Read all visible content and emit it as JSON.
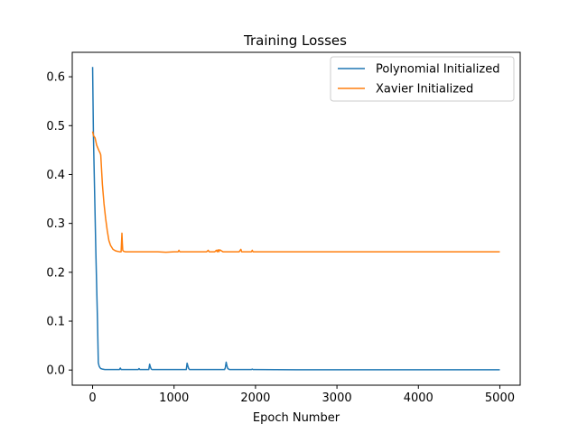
{
  "chart_data": {
    "type": "line",
    "title": "Training Losses",
    "xlabel": "Epoch Number",
    "ylabel": "",
    "xlim": [
      -250,
      5250
    ],
    "ylim": [
      -0.031,
      0.65
    ],
    "xticks": [
      0,
      1000,
      2000,
      3000,
      4000,
      5000
    ],
    "xtick_labels": [
      "0",
      "1000",
      "2000",
      "3000",
      "4000",
      "5000"
    ],
    "yticks": [
      0.0,
      0.1,
      0.2,
      0.3,
      0.4,
      0.5,
      0.6
    ],
    "ytick_labels": [
      "0.0",
      "0.1",
      "0.2",
      "0.3",
      "0.4",
      "0.5",
      "0.6"
    ],
    "grid": false,
    "legend_position": "top-right",
    "series": [
      {
        "name": "Polynomial Initialized",
        "color": "#1f77b4",
        "x": [
          0,
          5,
          10,
          20,
          30,
          40,
          50,
          60,
          70,
          80,
          90,
          100,
          120,
          150,
          200,
          300,
          330,
          340,
          350,
          400,
          500,
          560,
          570,
          580,
          600,
          690,
          700,
          710,
          720,
          730,
          800,
          1000,
          1150,
          1160,
          1170,
          1180,
          1190,
          1200,
          1300,
          1500,
          1620,
          1630,
          1640,
          1650,
          1660,
          1680,
          1700,
          1800,
          1950,
          1960,
          1970,
          2000,
          2500,
          3000,
          3500,
          4000,
          4500,
          5000
        ],
        "y": [
          0.62,
          0.55,
          0.48,
          0.4,
          0.32,
          0.24,
          0.17,
          0.1,
          0.015,
          0.008,
          0.005,
          0.003,
          0.002,
          0.001,
          0.001,
          0.001,
          0.001,
          0.004,
          0.001,
          0.001,
          0.001,
          0.001,
          0.003,
          0.001,
          0.001,
          0.001,
          0.012,
          0.006,
          0.002,
          0.001,
          0.001,
          0.001,
          0.001,
          0.014,
          0.008,
          0.003,
          0.001,
          0.001,
          0.001,
          0.001,
          0.001,
          0.005,
          0.016,
          0.008,
          0.003,
          0.001,
          0.001,
          0.001,
          0.001,
          0.002,
          0.001,
          0.001,
          0.0005,
          0.0005,
          0.0005,
          0.0005,
          0.0005,
          0.0005
        ]
      },
      {
        "name": "Xavier Initialized",
        "color": "#ff7f0e",
        "x": [
          0,
          10,
          30,
          50,
          70,
          80,
          90,
          100,
          120,
          140,
          160,
          180,
          200,
          220,
          250,
          280,
          300,
          330,
          350,
          360,
          365,
          370,
          380,
          400,
          500,
          700,
          800,
          900,
          1000,
          1050,
          1060,
          1070,
          1100,
          1200,
          1300,
          1400,
          1420,
          1430,
          1500,
          1520,
          1530,
          1540,
          1550,
          1560,
          1600,
          1700,
          1800,
          1820,
          1830,
          1850,
          1900,
          1950,
          1960,
          1970,
          2000,
          2500,
          3000,
          3500,
          4000,
          4500,
          5000
        ],
        "y": [
          0.488,
          0.48,
          0.475,
          0.46,
          0.452,
          0.448,
          0.445,
          0.44,
          0.38,
          0.34,
          0.31,
          0.285,
          0.265,
          0.255,
          0.247,
          0.244,
          0.243,
          0.242,
          0.242,
          0.28,
          0.26,
          0.245,
          0.243,
          0.242,
          0.242,
          0.242,
          0.242,
          0.241,
          0.242,
          0.242,
          0.245,
          0.242,
          0.242,
          0.242,
          0.242,
          0.242,
          0.245,
          0.242,
          0.242,
          0.245,
          0.242,
          0.246,
          0.242,
          0.246,
          0.242,
          0.242,
          0.242,
          0.247,
          0.242,
          0.242,
          0.242,
          0.242,
          0.245,
          0.242,
          0.242,
          0.242,
          0.242,
          0.242,
          0.242,
          0.242,
          0.242
        ]
      }
    ]
  }
}
